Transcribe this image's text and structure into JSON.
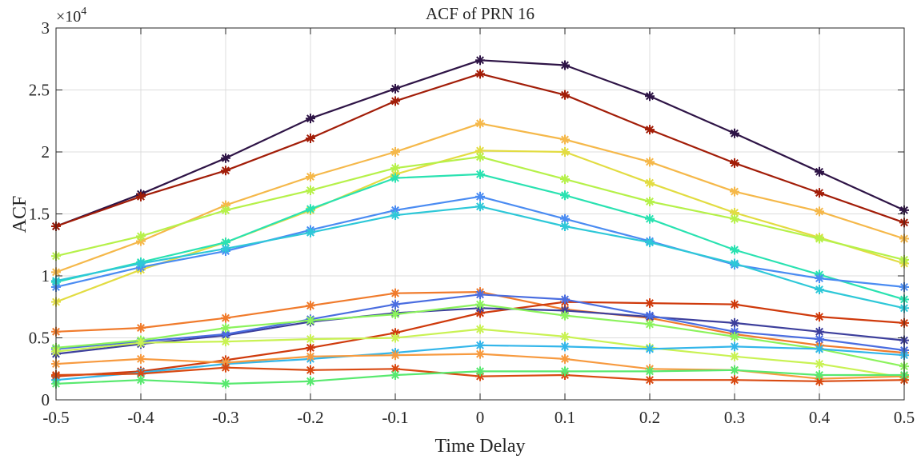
{
  "chart_data": {
    "type": "line",
    "title": "ACF of PRN 16",
    "xlabel": "Time Delay",
    "ylabel": "ACF",
    "exponent_label": "×10",
    "exponent_power": "4",
    "xlim": [
      -0.5,
      0.5
    ],
    "ylim": [
      0,
      30000
    ],
    "grid": true,
    "marker": "asterisk",
    "x": [
      -0.5,
      -0.4,
      -0.3,
      -0.2,
      -0.1,
      0,
      0.1,
      0.2,
      0.3,
      0.4,
      0.5
    ],
    "x_tick_labels": [
      "-0.5",
      "-0.4",
      "-0.3",
      "-0.2",
      "-0.1",
      "0",
      "0.1",
      "0.2",
      "0.3",
      "0.4",
      "0.5"
    ],
    "y_tick_values": [
      0,
      5000,
      10000,
      15000,
      20000,
      25000,
      30000
    ],
    "y_tick_labels": [
      "0",
      "0.5",
      "1",
      "1.5",
      "2",
      "2.5",
      "3"
    ],
    "series": [
      {
        "color": "#2e1446",
        "values": [
          14000,
          16600,
          19500,
          22700,
          25100,
          27400,
          27000,
          24500,
          21500,
          18400,
          15300
        ]
      },
      {
        "color": "#a21d08",
        "values": [
          14000,
          16400,
          18500,
          21100,
          24100,
          26300,
          24600,
          21800,
          19100,
          16700,
          14300
        ]
      },
      {
        "color": "#f5b84a",
        "values": [
          10300,
          12800,
          15700,
          18000,
          20000,
          22300,
          21000,
          19200,
          16800,
          15200,
          13000
        ]
      },
      {
        "color": "#e2dc42",
        "values": [
          7900,
          10500,
          12700,
          15300,
          18200,
          20100,
          20000,
          17500,
          15100,
          13100,
          11000
        ]
      },
      {
        "color": "#b6f14a",
        "values": [
          11600,
          13200,
          15300,
          16900,
          18700,
          19600,
          17800,
          16000,
          14600,
          13000,
          11300
        ]
      },
      {
        "color": "#2ae2b1",
        "values": [
          9500,
          11100,
          12700,
          15400,
          17900,
          18200,
          16500,
          14600,
          12100,
          10100,
          8100
        ]
      },
      {
        "color": "#4b8cf2",
        "values": [
          9100,
          10700,
          12000,
          13700,
          15300,
          16400,
          14600,
          12800,
          10900,
          9800,
          9100
        ]
      },
      {
        "color": "#2ec8d8",
        "values": [
          9600,
          11000,
          12200,
          13500,
          14900,
          15600,
          14000,
          12700,
          11000,
          8900,
          7400
        ]
      },
      {
        "color": "#f07b2c",
        "values": [
          5500,
          5800,
          6600,
          7600,
          8600,
          8700,
          7300,
          6600,
          5300,
          4400,
          3800
        ]
      },
      {
        "color": "#cf3a0c",
        "values": [
          1900,
          2300,
          3200,
          4200,
          5400,
          7000,
          7900,
          7800,
          7700,
          6700,
          6200
        ]
      },
      {
        "color": "#3d3f9c",
        "values": [
          3700,
          4500,
          5200,
          6300,
          7000,
          7400,
          7200,
          6700,
          6200,
          5500,
          4800
        ]
      },
      {
        "color": "#4a6de0",
        "values": [
          4100,
          4700,
          5300,
          6500,
          7700,
          8500,
          8100,
          6800,
          5500,
          4900,
          4000
        ]
      },
      {
        "color": "#8bf35c",
        "values": [
          4200,
          4800,
          5800,
          6400,
          6900,
          7700,
          6800,
          6100,
          5100,
          4100,
          2700
        ]
      },
      {
        "color": "#c9f253",
        "values": [
          3900,
          4600,
          4700,
          4900,
          5000,
          5700,
          5100,
          4200,
          3500,
          2900,
          1800
        ]
      },
      {
        "color": "#33b6ea",
        "values": [
          1600,
          2200,
          2900,
          3300,
          3800,
          4400,
          4300,
          4100,
          4300,
          4100,
          3600
        ]
      },
      {
        "color": "#f79a3f",
        "values": [
          2900,
          3300,
          3000,
          3500,
          3600,
          3700,
          3300,
          2500,
          2400,
          1700,
          1900
        ]
      },
      {
        "color": "#d94a12",
        "values": [
          2000,
          2100,
          2600,
          2400,
          2500,
          1900,
          2000,
          1600,
          1600,
          1500,
          1600
        ]
      },
      {
        "color": "#58e96f",
        "values": [
          1300,
          1600,
          1300,
          1500,
          2000,
          2300,
          2300,
          2300,
          2400,
          2000,
          2000
        ]
      }
    ]
  }
}
